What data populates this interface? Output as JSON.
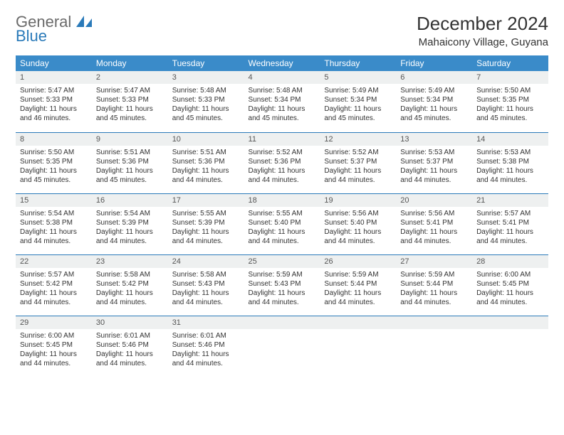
{
  "logo": {
    "general": "General",
    "blue": "Blue"
  },
  "title": "December 2024",
  "location": "Mahaicony Village, Guyana",
  "colors": {
    "header_bg": "#3a8bc9",
    "header_text": "#ffffff",
    "daynum_bg": "#eef0f0",
    "border_blue": "#2a7ab9",
    "text": "#333333"
  },
  "weekday_labels": [
    "Sunday",
    "Monday",
    "Tuesday",
    "Wednesday",
    "Thursday",
    "Friday",
    "Saturday"
  ],
  "weeks": [
    [
      {
        "day": "1",
        "sunrise": "Sunrise: 5:47 AM",
        "sunset": "Sunset: 5:33 PM",
        "dl1": "Daylight: 11 hours",
        "dl2": "and 46 minutes."
      },
      {
        "day": "2",
        "sunrise": "Sunrise: 5:47 AM",
        "sunset": "Sunset: 5:33 PM",
        "dl1": "Daylight: 11 hours",
        "dl2": "and 45 minutes."
      },
      {
        "day": "3",
        "sunrise": "Sunrise: 5:48 AM",
        "sunset": "Sunset: 5:33 PM",
        "dl1": "Daylight: 11 hours",
        "dl2": "and 45 minutes."
      },
      {
        "day": "4",
        "sunrise": "Sunrise: 5:48 AM",
        "sunset": "Sunset: 5:34 PM",
        "dl1": "Daylight: 11 hours",
        "dl2": "and 45 minutes."
      },
      {
        "day": "5",
        "sunrise": "Sunrise: 5:49 AM",
        "sunset": "Sunset: 5:34 PM",
        "dl1": "Daylight: 11 hours",
        "dl2": "and 45 minutes."
      },
      {
        "day": "6",
        "sunrise": "Sunrise: 5:49 AM",
        "sunset": "Sunset: 5:34 PM",
        "dl1": "Daylight: 11 hours",
        "dl2": "and 45 minutes."
      },
      {
        "day": "7",
        "sunrise": "Sunrise: 5:50 AM",
        "sunset": "Sunset: 5:35 PM",
        "dl1": "Daylight: 11 hours",
        "dl2": "and 45 minutes."
      }
    ],
    [
      {
        "day": "8",
        "sunrise": "Sunrise: 5:50 AM",
        "sunset": "Sunset: 5:35 PM",
        "dl1": "Daylight: 11 hours",
        "dl2": "and 45 minutes."
      },
      {
        "day": "9",
        "sunrise": "Sunrise: 5:51 AM",
        "sunset": "Sunset: 5:36 PM",
        "dl1": "Daylight: 11 hours",
        "dl2": "and 45 minutes."
      },
      {
        "day": "10",
        "sunrise": "Sunrise: 5:51 AM",
        "sunset": "Sunset: 5:36 PM",
        "dl1": "Daylight: 11 hours",
        "dl2": "and 44 minutes."
      },
      {
        "day": "11",
        "sunrise": "Sunrise: 5:52 AM",
        "sunset": "Sunset: 5:36 PM",
        "dl1": "Daylight: 11 hours",
        "dl2": "and 44 minutes."
      },
      {
        "day": "12",
        "sunrise": "Sunrise: 5:52 AM",
        "sunset": "Sunset: 5:37 PM",
        "dl1": "Daylight: 11 hours",
        "dl2": "and 44 minutes."
      },
      {
        "day": "13",
        "sunrise": "Sunrise: 5:53 AM",
        "sunset": "Sunset: 5:37 PM",
        "dl1": "Daylight: 11 hours",
        "dl2": "and 44 minutes."
      },
      {
        "day": "14",
        "sunrise": "Sunrise: 5:53 AM",
        "sunset": "Sunset: 5:38 PM",
        "dl1": "Daylight: 11 hours",
        "dl2": "and 44 minutes."
      }
    ],
    [
      {
        "day": "15",
        "sunrise": "Sunrise: 5:54 AM",
        "sunset": "Sunset: 5:38 PM",
        "dl1": "Daylight: 11 hours",
        "dl2": "and 44 minutes."
      },
      {
        "day": "16",
        "sunrise": "Sunrise: 5:54 AM",
        "sunset": "Sunset: 5:39 PM",
        "dl1": "Daylight: 11 hours",
        "dl2": "and 44 minutes."
      },
      {
        "day": "17",
        "sunrise": "Sunrise: 5:55 AM",
        "sunset": "Sunset: 5:39 PM",
        "dl1": "Daylight: 11 hours",
        "dl2": "and 44 minutes."
      },
      {
        "day": "18",
        "sunrise": "Sunrise: 5:55 AM",
        "sunset": "Sunset: 5:40 PM",
        "dl1": "Daylight: 11 hours",
        "dl2": "and 44 minutes."
      },
      {
        "day": "19",
        "sunrise": "Sunrise: 5:56 AM",
        "sunset": "Sunset: 5:40 PM",
        "dl1": "Daylight: 11 hours",
        "dl2": "and 44 minutes."
      },
      {
        "day": "20",
        "sunrise": "Sunrise: 5:56 AM",
        "sunset": "Sunset: 5:41 PM",
        "dl1": "Daylight: 11 hours",
        "dl2": "and 44 minutes."
      },
      {
        "day": "21",
        "sunrise": "Sunrise: 5:57 AM",
        "sunset": "Sunset: 5:41 PM",
        "dl1": "Daylight: 11 hours",
        "dl2": "and 44 minutes."
      }
    ],
    [
      {
        "day": "22",
        "sunrise": "Sunrise: 5:57 AM",
        "sunset": "Sunset: 5:42 PM",
        "dl1": "Daylight: 11 hours",
        "dl2": "and 44 minutes."
      },
      {
        "day": "23",
        "sunrise": "Sunrise: 5:58 AM",
        "sunset": "Sunset: 5:42 PM",
        "dl1": "Daylight: 11 hours",
        "dl2": "and 44 minutes."
      },
      {
        "day": "24",
        "sunrise": "Sunrise: 5:58 AM",
        "sunset": "Sunset: 5:43 PM",
        "dl1": "Daylight: 11 hours",
        "dl2": "and 44 minutes."
      },
      {
        "day": "25",
        "sunrise": "Sunrise: 5:59 AM",
        "sunset": "Sunset: 5:43 PM",
        "dl1": "Daylight: 11 hours",
        "dl2": "and 44 minutes."
      },
      {
        "day": "26",
        "sunrise": "Sunrise: 5:59 AM",
        "sunset": "Sunset: 5:44 PM",
        "dl1": "Daylight: 11 hours",
        "dl2": "and 44 minutes."
      },
      {
        "day": "27",
        "sunrise": "Sunrise: 5:59 AM",
        "sunset": "Sunset: 5:44 PM",
        "dl1": "Daylight: 11 hours",
        "dl2": "and 44 minutes."
      },
      {
        "day": "28",
        "sunrise": "Sunrise: 6:00 AM",
        "sunset": "Sunset: 5:45 PM",
        "dl1": "Daylight: 11 hours",
        "dl2": "and 44 minutes."
      }
    ],
    [
      {
        "day": "29",
        "sunrise": "Sunrise: 6:00 AM",
        "sunset": "Sunset: 5:45 PM",
        "dl1": "Daylight: 11 hours",
        "dl2": "and 44 minutes."
      },
      {
        "day": "30",
        "sunrise": "Sunrise: 6:01 AM",
        "sunset": "Sunset: 5:46 PM",
        "dl1": "Daylight: 11 hours",
        "dl2": "and 44 minutes."
      },
      {
        "day": "31",
        "sunrise": "Sunrise: 6:01 AM",
        "sunset": "Sunset: 5:46 PM",
        "dl1": "Daylight: 11 hours",
        "dl2": "and 44 minutes."
      },
      {
        "day": "",
        "sunrise": "",
        "sunset": "",
        "dl1": "",
        "dl2": ""
      },
      {
        "day": "",
        "sunrise": "",
        "sunset": "",
        "dl1": "",
        "dl2": ""
      },
      {
        "day": "",
        "sunrise": "",
        "sunset": "",
        "dl1": "",
        "dl2": ""
      },
      {
        "day": "",
        "sunrise": "",
        "sunset": "",
        "dl1": "",
        "dl2": ""
      }
    ]
  ]
}
